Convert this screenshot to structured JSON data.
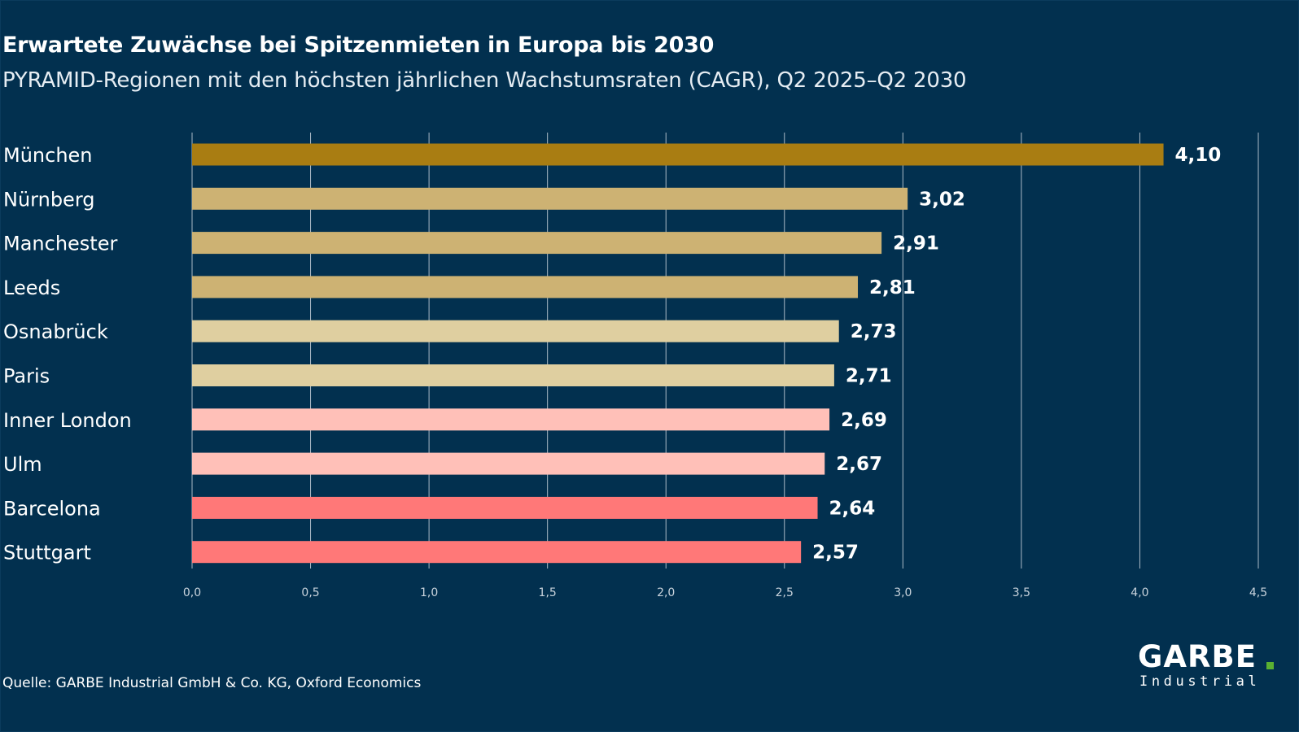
{
  "title": "Erwartete Zuwächse bei Spitzenmieten in Europa bis 2030",
  "subtitle": "PYRAMID-Regionen mit den höchsten jährlichen Wachstumsraten (CAGR), Q2 2025–Q2 2030",
  "source": "Quelle: GARBE Industrial GmbH & Co. KG, Oxford Economics",
  "logo": {
    "main": "GARBE",
    "sub": "Industrial",
    "dot_color": "#5ab031"
  },
  "chart_data": {
    "type": "bar",
    "orientation": "horizontal",
    "categories": [
      "München",
      "Nürnberg",
      "Manchester",
      "Leeds",
      "Osnabrück",
      "Paris",
      "Inner London",
      "Ulm",
      "Barcelona",
      "Stuttgart"
    ],
    "values": [
      4.1,
      3.02,
      2.91,
      2.81,
      2.73,
      2.71,
      2.69,
      2.67,
      2.64,
      2.57
    ],
    "value_labels": [
      "4,10",
      "3,02",
      "2,91",
      "2,81",
      "2,73",
      "2,71",
      "2,69",
      "2,67",
      "2,64",
      "2,57"
    ],
    "bar_colors": [
      "#a97d12",
      "#cdb273",
      "#cdb273",
      "#cdb273",
      "#dfcfa0",
      "#dfcfa0",
      "#ffc0b8",
      "#ffc0b8",
      "#ff7878",
      "#ff7878"
    ],
    "xlim": [
      0,
      4.5
    ],
    "x_ticks": [
      0,
      0.5,
      1.0,
      1.5,
      2.0,
      2.5,
      3.0,
      3.5,
      4.0,
      4.5
    ],
    "x_tick_labels": [
      "0,0",
      "0,5",
      "1,0",
      "1,5",
      "2,0",
      "2,5",
      "3,0",
      "3,5",
      "4,0",
      "4,5"
    ],
    "xlabel": "",
    "ylabel": "",
    "grid": true,
    "legend": "none"
  },
  "colors": {
    "background": "#02304f",
    "grid": "#c9d3dc",
    "text": "#ffffff"
  }
}
